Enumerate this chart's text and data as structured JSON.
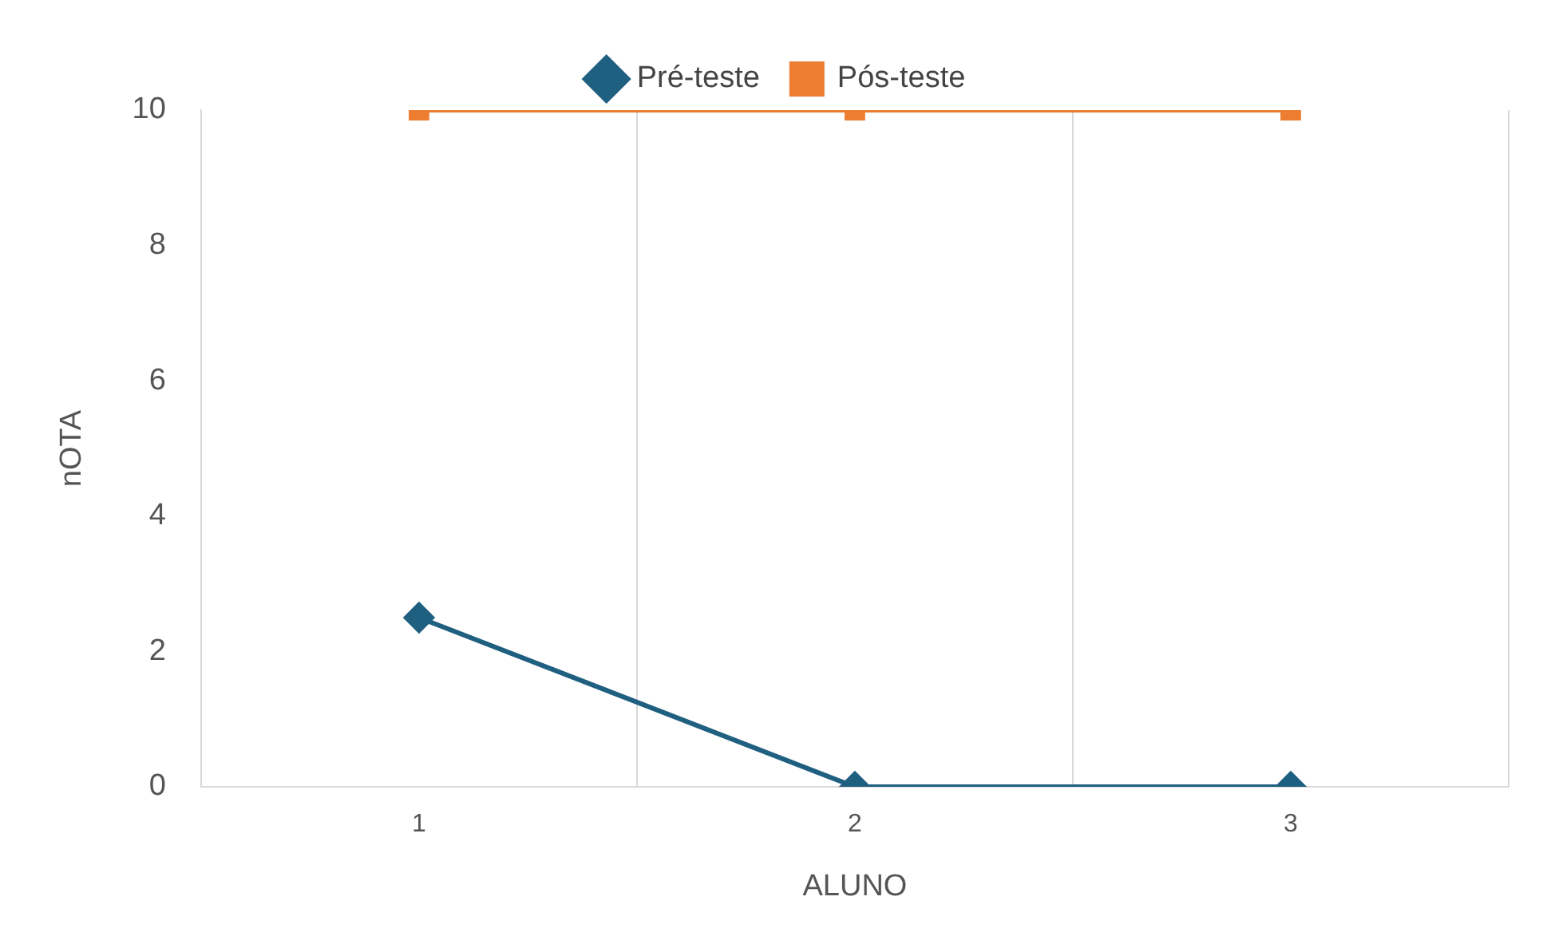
{
  "chart_data": {
    "type": "line",
    "xlabel": "ALUNO",
    "ylabel": "nOTA",
    "categories": [
      "1",
      "2",
      "3"
    ],
    "series": [
      {
        "name": "Pré-teste",
        "color": "#1f5f80",
        "values": [
          2.5,
          0,
          0
        ],
        "marker": "diamond"
      },
      {
        "name": "Pós-teste",
        "color": "#ed7d31",
        "values": [
          10,
          10,
          10
        ],
        "marker": "square"
      }
    ],
    "ylim": [
      0,
      10
    ],
    "yticks": [
      0,
      2,
      4,
      6,
      8,
      10
    ],
    "grid": "x",
    "legend": "top",
    "line_style": "solid"
  }
}
